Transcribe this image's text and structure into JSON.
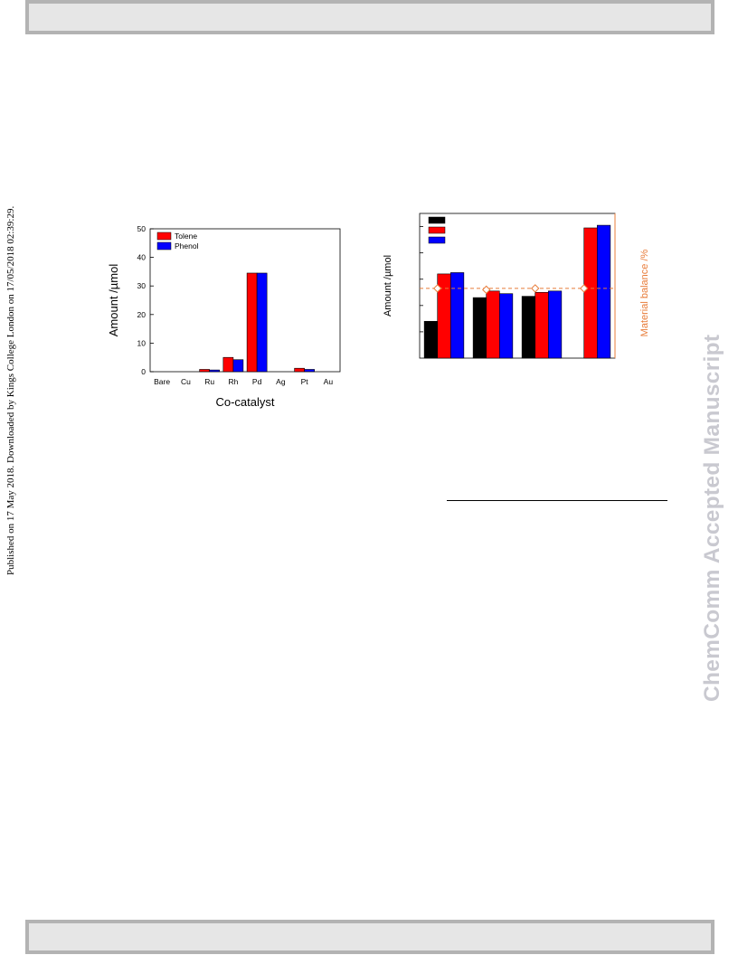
{
  "header": {
    "text": ""
  },
  "side_note": "Published on 17 May 2018. Downloaded by Kings College London on 17/05/2018 02:39:29.",
  "watermark": "ChemComm Accepted Manuscript",
  "colors": {
    "tolene": "#ff0000",
    "phenol": "#0000ff",
    "black_series": "#000000",
    "balance": "#e87c3a",
    "strip_fill": "#e6e6e6",
    "strip_border": "#b3b3b3"
  },
  "chart_data": [
    {
      "type": "bar",
      "xlabel": "Co-catalyst",
      "ylabel": "Amount /µmol",
      "ylim": [
        0,
        50
      ],
      "yticks": [
        "0",
        "10",
        "20",
        "30",
        "40",
        "50"
      ],
      "categories": [
        "Bare",
        "Cu",
        "Ru",
        "Rh",
        "Pd",
        "Ag",
        "Pt",
        "Au"
      ],
      "series": [
        {
          "name": "Tolene",
          "values": [
            0,
            0,
            0.8,
            5.0,
            34.5,
            0,
            1.2,
            0
          ]
        },
        {
          "name": "Phenol",
          "values": [
            0,
            0,
            0.6,
            4.2,
            34.5,
            0,
            0.8,
            0
          ]
        }
      ],
      "legend": "top-left",
      "grid": false
    },
    {
      "type": "bar",
      "ylabel": "Amount /µmol",
      "y2label": "Material balance /%",
      "categories": [
        "",
        "",
        "",
        ""
      ],
      "series": [
        {
          "values": [
            1.4,
            2.3,
            2.35,
            null
          ]
        },
        {
          "values": [
            3.2,
            2.55,
            2.5,
            4.95
          ]
        },
        {
          "values": [
            3.25,
            2.45,
            2.55,
            5.05
          ]
        }
      ],
      "material_balance": [
        2.65,
        2.6,
        2.65,
        2.65
      ],
      "reference_line": 2.65,
      "ylim": [
        0,
        5.5
      ],
      "legend": "top-left",
      "grid": false
    }
  ]
}
